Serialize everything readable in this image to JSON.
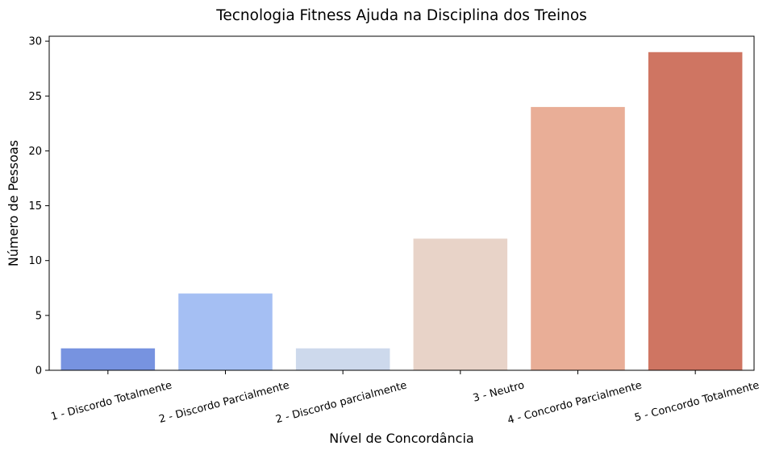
{
  "chart_data": {
    "type": "bar",
    "title": "Tecnologia Fitness Ajuda na Disciplina dos Treinos",
    "xlabel": "Nível de Concordância",
    "ylabel": "Número de Pessoas",
    "categories": [
      "1 - Discordo Totalmente",
      "2 - Discordo Parcialmente",
      "2 - Discordo parcialmente",
      "3 - Neutro",
      "4 - Concordo Parcialmente",
      "5 - Concordo Totalmente"
    ],
    "values": [
      2,
      7,
      2,
      12,
      24,
      29
    ],
    "colors": [
      "#7793e0",
      "#a5bff3",
      "#cdd9ec",
      "#e8d3c8",
      "#e9ae97",
      "#cf7562"
    ],
    "ylim": [
      0,
      30.45
    ],
    "yticks": [
      0,
      5,
      10,
      15,
      20,
      25,
      30
    ],
    "grid": false,
    "legend": "none"
  }
}
